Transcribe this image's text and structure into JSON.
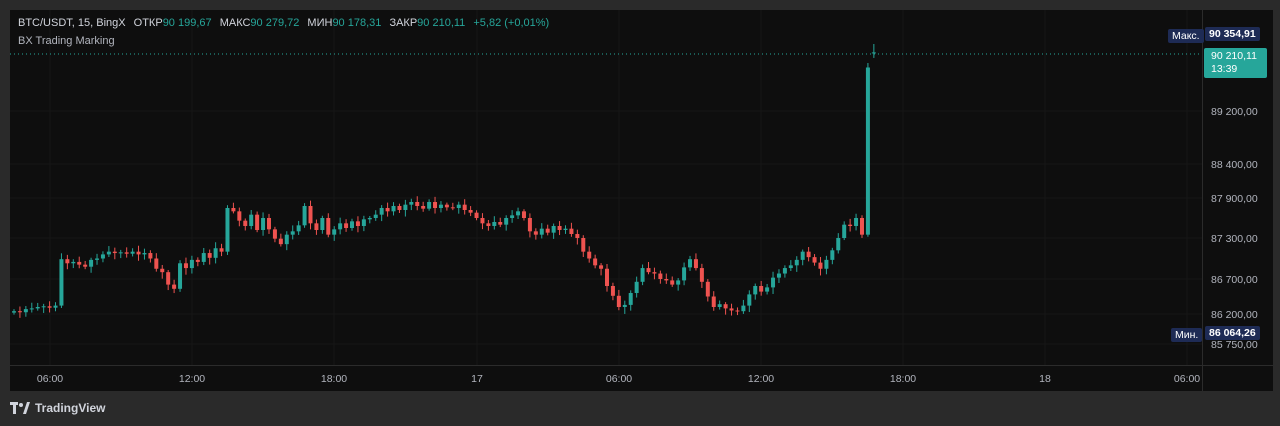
{
  "legend": {
    "symbol": "BTC/USDT, 15, BingX",
    "open_label": "ОТКР",
    "open_value": "90 199,67",
    "high_label": "МАКС",
    "high_value": "90 279,72",
    "low_label": "МИН",
    "low_value": "90 178,31",
    "close_label": "ЗАКР",
    "close_value": "90 210,11",
    "change": "+5,82 (+0,01%)"
  },
  "indicator": "BX Trading Marking",
  "price_axis": {
    "ticks": [
      "89 200,00",
      "88 400,00",
      "87 900,00",
      "87 300,00",
      "86 700,00",
      "86 200,00",
      "85 750,00"
    ],
    "max_label": "Макс.",
    "max_value": "90 354,91",
    "min_label": "Мин.",
    "min_value": "86 064,26",
    "last_price": "90 210,11",
    "last_time": "13:39"
  },
  "time_axis": {
    "ticks": [
      "06:00",
      "12:00",
      "18:00",
      "17",
      "06:00",
      "12:00",
      "18:00",
      "18",
      "06:00"
    ]
  },
  "branding": "TradingView",
  "colors": {
    "up": "#26a69a",
    "down": "#ef5350",
    "background": "#0e0e0e",
    "text": "#d1d4dc",
    "tag": "#1e2b55"
  },
  "chart_data": {
    "type": "candlestick",
    "title": "BTC/USDT, 15, BingX",
    "interval": "15",
    "ohlc": {
      "open": 90199.67,
      "high": 90279.72,
      "low": 90178.31,
      "close": 90210.11
    },
    "ylim": [
      85700,
      90700
    ],
    "max_marker": 90354.91,
    "min_marker": 86064.26,
    "closes": [
      86240,
      86225,
      86270,
      86280,
      86300,
      86310,
      86290,
      86320,
      86990,
      86930,
      86950,
      86910,
      86880,
      86980,
      87000,
      87060,
      87100,
      87080,
      87090,
      87070,
      87100,
      87060,
      87080,
      87000,
      86850,
      86800,
      86620,
      86560,
      86930,
      86860,
      86980,
      86950,
      87080,
      87010,
      87150,
      87100,
      87750,
      87700,
      87560,
      87480,
      87650,
      87420,
      87600,
      87430,
      87290,
      87210,
      87350,
      87400,
      87490,
      87780,
      87520,
      87420,
      87600,
      87350,
      87430,
      87520,
      87450,
      87550,
      87480,
      87580,
      87600,
      87650,
      87750,
      87700,
      87780,
      87720,
      87800,
      87840,
      87780,
      87740,
      87840,
      87750,
      87800,
      87760,
      87750,
      87800,
      87720,
      87680,
      87600,
      87520,
      87480,
      87540,
      87500,
      87600,
      87640,
      87700,
      87600,
      87400,
      87350,
      87440,
      87380,
      87480,
      87420,
      87440,
      87360,
      87300,
      87100,
      87000,
      86900,
      86850,
      86600,
      86460,
      86300,
      86330,
      86500,
      86660,
      86860,
      86800,
      86780,
      86700,
      86680,
      86620,
      86680,
      86870,
      86990,
      86860,
      86660,
      86450,
      86300,
      86340,
      86280,
      86250,
      86240,
      86320,
      86480,
      86600,
      86520,
      86580,
      86720,
      86780,
      86860,
      86900,
      86980,
      87100,
      87020,
      86940,
      86850,
      86980,
      87120,
      87300,
      87500,
      87480,
      87600,
      87350,
      89950,
      90210
    ]
  }
}
